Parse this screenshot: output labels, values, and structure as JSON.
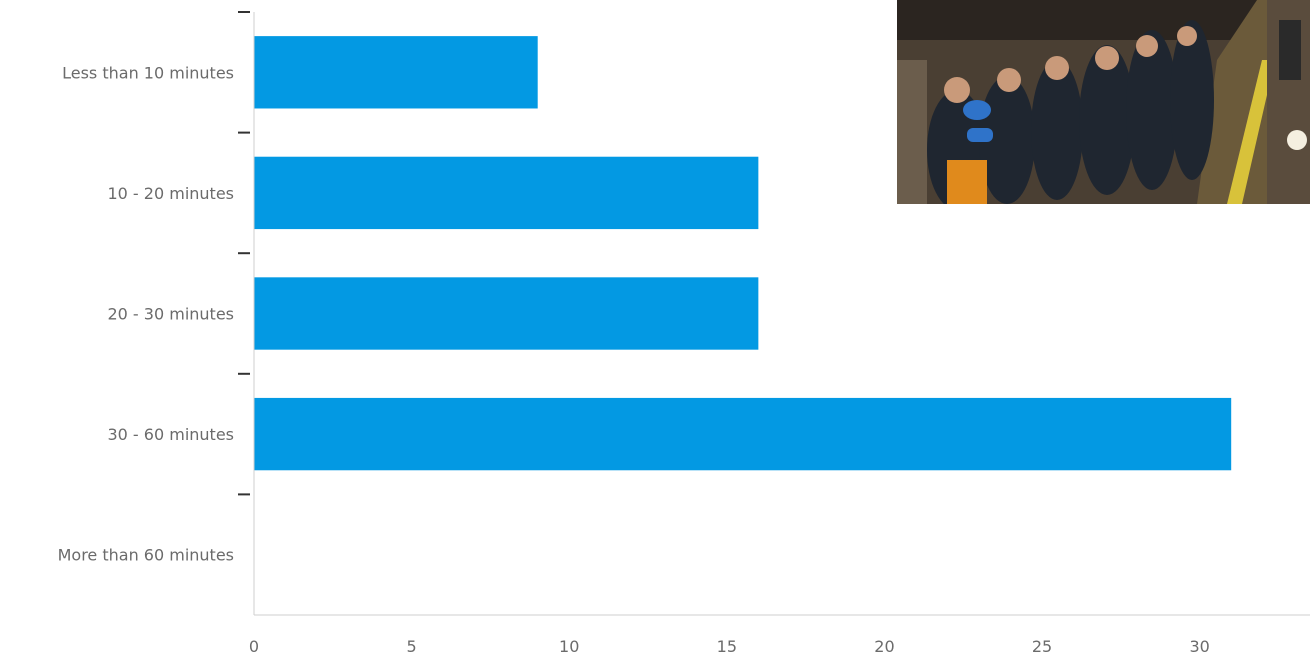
{
  "chart_data": {
    "type": "bar",
    "orientation": "horizontal",
    "categories": [
      "Less than 10 minutes",
      "10 - 20 minutes",
      "20 - 30 minutes",
      "30 - 60 minutes",
      "More than 60 minutes"
    ],
    "values": [
      9,
      16,
      16,
      31,
      0
    ],
    "x_ticks": [
      "0",
      "5",
      "10",
      "15",
      "20",
      "25",
      "30"
    ],
    "xlim": [
      0,
      33.5
    ],
    "title": "",
    "xlabel": "",
    "ylabel": "",
    "grid": false,
    "bar_color": "#0399e3"
  },
  "photo": {
    "subject": "commuters-crowded-subway-platform"
  }
}
